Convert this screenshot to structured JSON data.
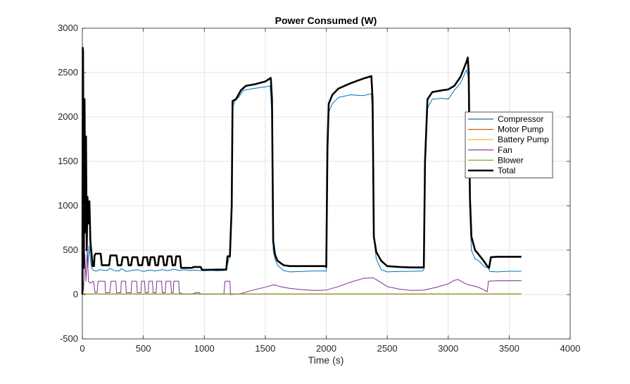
{
  "chart_data": {
    "type": "line",
    "title": "Power Consumed (W)",
    "xlabel": "Time (s)",
    "ylabel": "",
    "xlim": [
      0,
      4000
    ],
    "ylim": [
      -500,
      3000
    ],
    "xticks": [
      0,
      500,
      1000,
      1500,
      2000,
      2500,
      3000,
      3500,
      4000
    ],
    "yticks": [
      -500,
      0,
      500,
      1000,
      1500,
      2000,
      2500,
      3000
    ],
    "xtick_labels": [
      "0",
      "500",
      "1000",
      "1500",
      "2000",
      "2500",
      "3000",
      "3500",
      "4000"
    ],
    "ytick_labels": [
      "-500",
      "0",
      "500",
      "1000",
      "1500",
      "2000",
      "2500",
      "3000"
    ],
    "grid": true,
    "legend_position": "right",
    "series": [
      {
        "name": "Compressor",
        "color": "#0072BD",
        "points": [
          [
            0,
            0
          ],
          [
            3,
            600
          ],
          [
            8,
            2000
          ],
          [
            15,
            1400
          ],
          [
            22,
            700
          ],
          [
            30,
            1000
          ],
          [
            38,
            600
          ],
          [
            45,
            300
          ],
          [
            55,
            550
          ],
          [
            65,
            400
          ],
          [
            75,
            300
          ],
          [
            90,
            270
          ],
          [
            120,
            265
          ],
          [
            140,
            280
          ],
          [
            200,
            270
          ],
          [
            230,
            295
          ],
          [
            260,
            270
          ],
          [
            300,
            265
          ],
          [
            320,
            290
          ],
          [
            360,
            260
          ],
          [
            400,
            270
          ],
          [
            450,
            280
          ],
          [
            500,
            260
          ],
          [
            550,
            275
          ],
          [
            600,
            265
          ],
          [
            650,
            280
          ],
          [
            700,
            270
          ],
          [
            750,
            285
          ],
          [
            800,
            270
          ],
          [
            830,
            280
          ],
          [
            880,
            270
          ],
          [
            920,
            275
          ],
          [
            960,
            270
          ],
          [
            1000,
            268
          ],
          [
            1050,
            272
          ],
          [
            1100,
            268
          ],
          [
            1150,
            270
          ],
          [
            1180,
            275
          ],
          [
            1200,
            400
          ],
          [
            1210,
            420
          ],
          [
            1225,
            1000
          ],
          [
            1230,
            2100
          ],
          [
            1250,
            2180
          ],
          [
            1280,
            2220
          ],
          [
            1320,
            2300
          ],
          [
            1400,
            2320
          ],
          [
            1500,
            2340
          ],
          [
            1540,
            2350
          ],
          [
            1555,
            2000
          ],
          [
            1565,
            500
          ],
          [
            1580,
            400
          ],
          [
            1600,
            330
          ],
          [
            1650,
            270
          ],
          [
            1700,
            255
          ],
          [
            1800,
            260
          ],
          [
            1900,
            265
          ],
          [
            1990,
            265
          ],
          [
            2000,
            260
          ],
          [
            2010,
            1600
          ],
          [
            2020,
            2050
          ],
          [
            2050,
            2150
          ],
          [
            2100,
            2220
          ],
          [
            2200,
            2250
          ],
          [
            2300,
            2240
          ],
          [
            2370,
            2260
          ],
          [
            2380,
            2000
          ],
          [
            2390,
            650
          ],
          [
            2410,
            400
          ],
          [
            2450,
            280
          ],
          [
            2500,
            255
          ],
          [
            2600,
            260
          ],
          [
            2700,
            262
          ],
          [
            2790,
            265
          ],
          [
            2800,
            280
          ],
          [
            2810,
            1500
          ],
          [
            2830,
            2100
          ],
          [
            2870,
            2200
          ],
          [
            2950,
            2210
          ],
          [
            3000,
            2200
          ],
          [
            3050,
            2300
          ],
          [
            3100,
            2380
          ],
          [
            3150,
            2530
          ],
          [
            3165,
            2450
          ],
          [
            3175,
            1000
          ],
          [
            3190,
            500
          ],
          [
            3220,
            400
          ],
          [
            3250,
            380
          ],
          [
            3300,
            310
          ],
          [
            3330,
            300
          ],
          [
            3340,
            260
          ],
          [
            3400,
            255
          ],
          [
            3500,
            262
          ],
          [
            3600,
            262
          ]
        ]
      },
      {
        "name": "Motor Pump",
        "color": "#D95319",
        "points": [
          [
            0,
            5
          ],
          [
            3600,
            5
          ]
        ]
      },
      {
        "name": "Battery Pump",
        "color": "#EDB120",
        "points": [
          [
            0,
            8
          ],
          [
            3600,
            8
          ]
        ]
      },
      {
        "name": "Fan",
        "color": "#7E2F8E",
        "points": [
          [
            0,
            0
          ],
          [
            5,
            150
          ],
          [
            10,
            40
          ],
          [
            20,
            450
          ],
          [
            30,
            150
          ],
          [
            40,
            500
          ],
          [
            50,
            150
          ],
          [
            60,
            130
          ],
          [
            80,
            140
          ],
          [
            90,
            150
          ],
          [
            105,
            20
          ],
          [
            120,
            20
          ],
          [
            130,
            150
          ],
          [
            185,
            150
          ],
          [
            190,
            20
          ],
          [
            225,
            20
          ],
          [
            235,
            150
          ],
          [
            275,
            150
          ],
          [
            280,
            20
          ],
          [
            315,
            20
          ],
          [
            320,
            150
          ],
          [
            355,
            150
          ],
          [
            360,
            20
          ],
          [
            400,
            20
          ],
          [
            405,
            150
          ],
          [
            445,
            150
          ],
          [
            450,
            20
          ],
          [
            480,
            20
          ],
          [
            485,
            150
          ],
          [
            510,
            150
          ],
          [
            515,
            20
          ],
          [
            540,
            20
          ],
          [
            545,
            150
          ],
          [
            575,
            150
          ],
          [
            580,
            20
          ],
          [
            605,
            20
          ],
          [
            610,
            150
          ],
          [
            650,
            150
          ],
          [
            655,
            20
          ],
          [
            680,
            20
          ],
          [
            685,
            150
          ],
          [
            725,
            150
          ],
          [
            730,
            20
          ],
          [
            745,
            20
          ],
          [
            750,
            150
          ],
          [
            790,
            150
          ],
          [
            795,
            20
          ],
          [
            830,
            5
          ],
          [
            900,
            5
          ],
          [
            930,
            20
          ],
          [
            960,
            20
          ],
          [
            970,
            5
          ],
          [
            1000,
            3
          ],
          [
            1100,
            5
          ],
          [
            1160,
            5
          ],
          [
            1170,
            150
          ],
          [
            1210,
            150
          ],
          [
            1215,
            0
          ],
          [
            1300,
            10
          ],
          [
            1400,
            50
          ],
          [
            1520,
            90
          ],
          [
            1570,
            110
          ],
          [
            1620,
            90
          ],
          [
            1700,
            70
          ],
          [
            1800,
            55
          ],
          [
            1900,
            45
          ],
          [
            2000,
            50
          ],
          [
            2100,
            90
          ],
          [
            2200,
            140
          ],
          [
            2300,
            180
          ],
          [
            2380,
            190
          ],
          [
            2420,
            160
          ],
          [
            2500,
            90
          ],
          [
            2600,
            60
          ],
          [
            2700,
            45
          ],
          [
            2800,
            50
          ],
          [
            2900,
            80
          ],
          [
            3000,
            120
          ],
          [
            3050,
            160
          ],
          [
            3080,
            170
          ],
          [
            3120,
            140
          ],
          [
            3160,
            110
          ],
          [
            3200,
            100
          ],
          [
            3250,
            80
          ],
          [
            3290,
            55
          ],
          [
            3320,
            30
          ],
          [
            3330,
            150
          ],
          [
            3400,
            155
          ],
          [
            3500,
            155
          ],
          [
            3600,
            155
          ]
        ]
      },
      {
        "name": "Blower",
        "color": "#77AC30",
        "points": [
          [
            0,
            5
          ],
          [
            500,
            6
          ],
          [
            1000,
            6
          ],
          [
            1500,
            8
          ],
          [
            2000,
            7
          ],
          [
            2500,
            8
          ],
          [
            3000,
            7
          ],
          [
            3600,
            8
          ]
        ]
      },
      {
        "name": "Total",
        "color": "#000000",
        "points": [
          [
            0,
            0
          ],
          [
            3,
            2780
          ],
          [
            6,
            2750
          ],
          [
            8,
            1800
          ],
          [
            12,
            300
          ],
          [
            18,
            2200
          ],
          [
            24,
            700
          ],
          [
            30,
            1780
          ],
          [
            36,
            500
          ],
          [
            42,
            1100
          ],
          [
            50,
            800
          ],
          [
            58,
            1050
          ],
          [
            66,
            600
          ],
          [
            72,
            500
          ],
          [
            85,
            320
          ],
          [
            95,
            320
          ],
          [
            100,
            440
          ],
          [
            110,
            460
          ],
          [
            150,
            460
          ],
          [
            160,
            330
          ],
          [
            220,
            330
          ],
          [
            230,
            440
          ],
          [
            280,
            440
          ],
          [
            290,
            330
          ],
          [
            320,
            330
          ],
          [
            330,
            420
          ],
          [
            370,
            420
          ],
          [
            380,
            330
          ],
          [
            400,
            330
          ],
          [
            410,
            420
          ],
          [
            450,
            420
          ],
          [
            460,
            330
          ],
          [
            490,
            330
          ],
          [
            500,
            420
          ],
          [
            530,
            420
          ],
          [
            540,
            330
          ],
          [
            550,
            330
          ],
          [
            560,
            420
          ],
          [
            590,
            420
          ],
          [
            600,
            330
          ],
          [
            620,
            330
          ],
          [
            630,
            430
          ],
          [
            660,
            430
          ],
          [
            670,
            330
          ],
          [
            690,
            330
          ],
          [
            700,
            430
          ],
          [
            730,
            430
          ],
          [
            740,
            330
          ],
          [
            760,
            330
          ],
          [
            770,
            430
          ],
          [
            800,
            430
          ],
          [
            810,
            300
          ],
          [
            860,
            300
          ],
          [
            900,
            300
          ],
          [
            910,
            310
          ],
          [
            970,
            310
          ],
          [
            980,
            280
          ],
          [
            1000,
            278
          ],
          [
            1100,
            280
          ],
          [
            1180,
            280
          ],
          [
            1190,
            430
          ],
          [
            1210,
            430
          ],
          [
            1225,
            1000
          ],
          [
            1232,
            2180
          ],
          [
            1260,
            2200
          ],
          [
            1300,
            2300
          ],
          [
            1340,
            2350
          ],
          [
            1420,
            2370
          ],
          [
            1500,
            2400
          ],
          [
            1545,
            2440
          ],
          [
            1555,
            2200
          ],
          [
            1565,
            600
          ],
          [
            1580,
            450
          ],
          [
            1600,
            380
          ],
          [
            1650,
            330
          ],
          [
            1700,
            320
          ],
          [
            1800,
            320
          ],
          [
            1900,
            320
          ],
          [
            1990,
            320
          ],
          [
            2000,
            310
          ],
          [
            2010,
            1650
          ],
          [
            2020,
            2150
          ],
          [
            2050,
            2250
          ],
          [
            2100,
            2320
          ],
          [
            2200,
            2380
          ],
          [
            2300,
            2430
          ],
          [
            2370,
            2460
          ],
          [
            2380,
            2200
          ],
          [
            2390,
            650
          ],
          [
            2410,
            480
          ],
          [
            2450,
            380
          ],
          [
            2500,
            320
          ],
          [
            2600,
            310
          ],
          [
            2700,
            305
          ],
          [
            2790,
            305
          ],
          [
            2800,
            305
          ],
          [
            2810,
            1500
          ],
          [
            2830,
            2200
          ],
          [
            2870,
            2280
          ],
          [
            2950,
            2300
          ],
          [
            3000,
            2310
          ],
          [
            3050,
            2350
          ],
          [
            3100,
            2450
          ],
          [
            3150,
            2620
          ],
          [
            3160,
            2670
          ],
          [
            3168,
            2500
          ],
          [
            3178,
            1100
          ],
          [
            3190,
            650
          ],
          [
            3220,
            500
          ],
          [
            3250,
            450
          ],
          [
            3290,
            380
          ],
          [
            3320,
            320
          ],
          [
            3335,
            300
          ],
          [
            3350,
            420
          ],
          [
            3400,
            425
          ],
          [
            3500,
            425
          ],
          [
            3600,
            425
          ]
        ]
      }
    ]
  }
}
